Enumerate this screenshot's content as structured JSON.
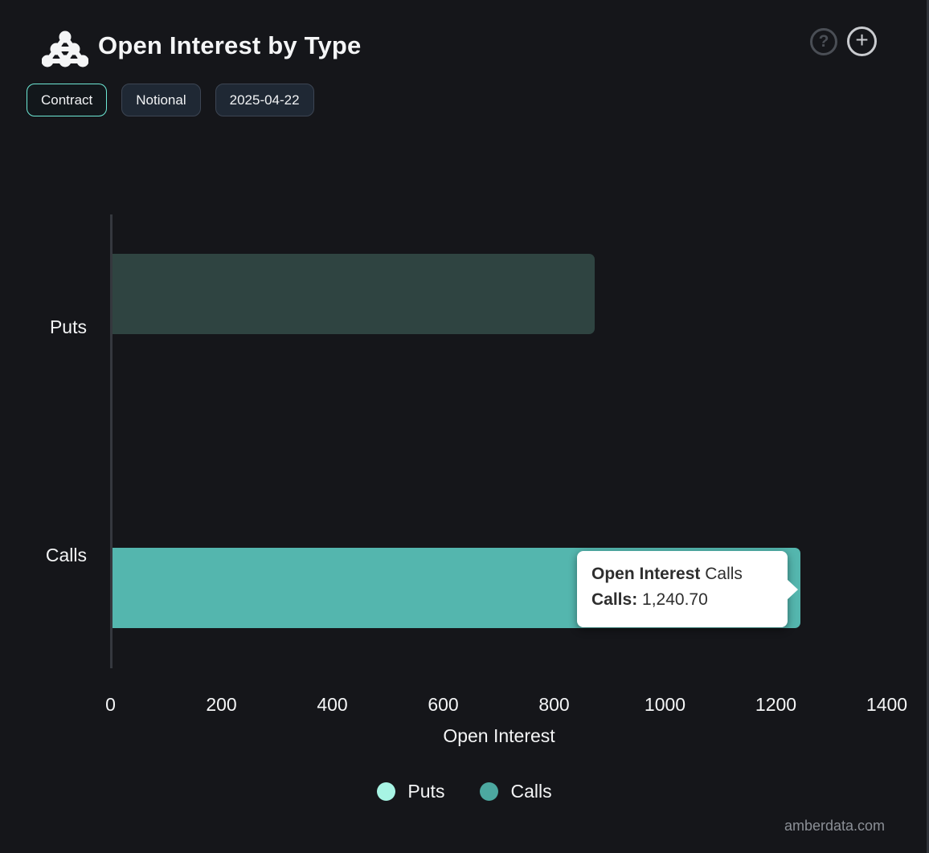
{
  "header": {
    "title": "Open Interest by Type",
    "help_label": "?",
    "add_label": "+"
  },
  "toolbar": {
    "buttons": [
      {
        "label": "Contract",
        "active": true
      },
      {
        "label": "Notional",
        "active": false
      },
      {
        "label": "2025-04-22",
        "active": false
      }
    ]
  },
  "chart_data": {
    "type": "bar",
    "orientation": "horizontal",
    "title": "Open Interest by Type",
    "categories": [
      "Puts",
      "Calls"
    ],
    "series": [
      {
        "name": "Puts",
        "values": [
          870,
          null
        ],
        "display_color": "#2f4441"
      },
      {
        "name": "Calls",
        "values": [
          null,
          1240.7
        ],
        "display_color": "#54b6ae"
      }
    ],
    "xlabel": "Open Interest",
    "ylabel": "",
    "xlim": [
      0,
      1400
    ],
    "x_ticks": [
      0,
      200,
      400,
      600,
      800,
      1000,
      1200,
      1400
    ],
    "grid": false,
    "legend": {
      "position": "bottom",
      "items": [
        {
          "label": "Puts",
          "color": "#a7f4e4"
        },
        {
          "label": "Calls",
          "color": "#4ca8a0"
        }
      ]
    }
  },
  "tooltip": {
    "series_bold": "Open Interest",
    "series_suffix": "Calls",
    "row_label": "Calls:",
    "row_value": "1,240.70"
  },
  "colors": {
    "background": "#15161a",
    "accent_teal": "#6ee9d6",
    "calls_bar": "#54b6ae",
    "puts_bar_dimmed": "#2f4441"
  },
  "watermark": "amberdata.com"
}
